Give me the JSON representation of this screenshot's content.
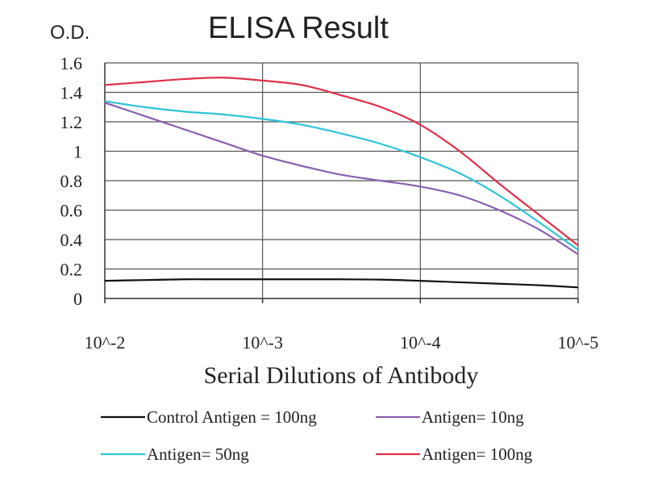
{
  "chart_data": {
    "type": "line",
    "title": "ELISA Result",
    "ylabel": "O.D.",
    "xlabel": "Serial Dilutions of Antibody",
    "categories": [
      "10^-2",
      "10^-3",
      "10^-4",
      "10^-5"
    ],
    "x": [
      0,
      0.25,
      0.5,
      0.75,
      1,
      1.25,
      1.5,
      1.75,
      2,
      2.25,
      2.5,
      2.75,
      3
    ],
    "ylim": [
      0,
      1.6
    ],
    "yticks": [
      "0",
      "0.2",
      "0.4",
      "0.6",
      "0.8",
      "1",
      "1.2",
      "1.4",
      "1.6"
    ],
    "grid": true,
    "legend_position": "bottom",
    "series": [
      {
        "name": "Control Antigen = 100ng",
        "color": "#111111",
        "values": [
          0.12,
          0.125,
          0.13,
          0.13,
          0.13,
          0.13,
          0.13,
          0.128,
          0.12,
          0.11,
          0.1,
          0.09,
          0.075
        ]
      },
      {
        "name": "Antigen= 10ng",
        "color": "#8a5fb0",
        "values": [
          1.33,
          1.24,
          1.15,
          1.06,
          0.97,
          0.9,
          0.84,
          0.8,
          0.76,
          0.7,
          0.6,
          0.47,
          0.3
        ]
      },
      {
        "name": "Antigen= 50ng",
        "color": "#2ec4d8",
        "values": [
          1.34,
          1.3,
          1.27,
          1.25,
          1.22,
          1.18,
          1.12,
          1.05,
          0.96,
          0.85,
          0.7,
          0.52,
          0.33
        ]
      },
      {
        "name": "Antigen= 100ng",
        "color": "#e0304a",
        "values": [
          1.45,
          1.47,
          1.49,
          1.5,
          1.48,
          1.45,
          1.38,
          1.3,
          1.18,
          1.0,
          0.78,
          0.57,
          0.36
        ]
      }
    ]
  }
}
